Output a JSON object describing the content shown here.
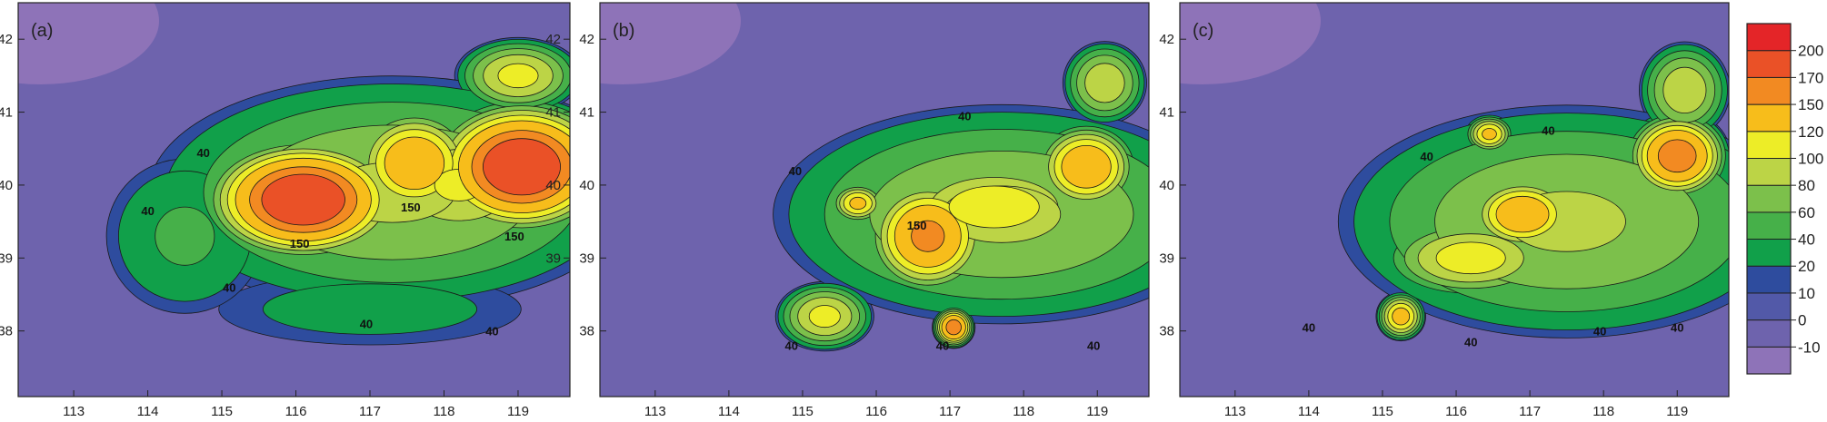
{
  "chart_data": {
    "type": "contour",
    "colorbar": {
      "levels": [
        -10,
        0,
        10,
        20,
        40,
        60,
        80,
        100,
        120,
        150,
        170,
        200
      ],
      "labels": [
        "-10",
        "0",
        "10",
        "20",
        "40",
        "60",
        "80",
        "100",
        "120",
        "150",
        "170",
        "200"
      ],
      "colors": [
        "#8e73b8",
        "#6e63ad",
        "#5259a8",
        "#2e4c9e",
        "#11a04a",
        "#46b049",
        "#7cc04b",
        "#bcd446",
        "#eded27",
        "#f7bd1b",
        "#f28a22",
        "#ea5127",
        "#e42528"
      ]
    },
    "panels": [
      {
        "label": "(a)",
        "xticks": [
          "113",
          "114",
          "115",
          "116",
          "117",
          "118",
          "119"
        ],
        "yticks": [
          "38",
          "39",
          "40",
          "41",
          "42"
        ],
        "right_yticks": [
          "39",
          "40",
          "41",
          "42"
        ],
        "xlim": [
          112.25,
          119.7
        ],
        "ylim": [
          37.1,
          42.5
        ],
        "contour_labels": [
          {
            "text": "40",
            "x": 114.0,
            "y": 39.65
          },
          {
            "text": "40",
            "x": 114.75,
            "y": 40.45
          },
          {
            "text": "40",
            "x": 115.1,
            "y": 38.6
          },
          {
            "text": "40",
            "x": 116.95,
            "y": 38.1
          },
          {
            "text": "40",
            "x": 118.65,
            "y": 38.0
          },
          {
            "text": "150",
            "x": 116.05,
            "y": 39.2
          },
          {
            "text": "150",
            "x": 117.55,
            "y": 39.7
          },
          {
            "text": "150",
            "x": 118.95,
            "y": 39.3
          }
        ],
        "centers": [
          {
            "x": 116.1,
            "y": 39.8,
            "peak": 200,
            "rx": 1.45,
            "ry": 0.9
          },
          {
            "x": 119.05,
            "y": 40.25,
            "peak": 200,
            "rx": 1.35,
            "ry": 1.0
          },
          {
            "x": 117.6,
            "y": 40.3,
            "peak": 150,
            "rx": 0.9,
            "ry": 0.8
          },
          {
            "x": 118.2,
            "y": 40.0,
            "peak": 105,
            "rx": 1.5,
            "ry": 1.0
          },
          {
            "x": 119.0,
            "y": 41.5,
            "peak": 110,
            "rx": 0.9,
            "ry": 0.55
          },
          {
            "x": 117.3,
            "y": 39.9,
            "peak": 85,
            "rx": 3.5,
            "ry": 1.7
          },
          {
            "x": 117.0,
            "y": 38.3,
            "peak": 30,
            "rx": 2.5,
            "ry": 0.6
          },
          {
            "x": 114.5,
            "y": 39.3,
            "peak": 45,
            "rx": 1.2,
            "ry": 1.2
          }
        ]
      },
      {
        "label": "(b)",
        "xticks": [
          "113",
          "114",
          "115",
          "116",
          "117",
          "118",
          "119"
        ],
        "yticks": [
          "38",
          "39",
          "40",
          "41",
          "42"
        ],
        "right_yticks": [],
        "xlim": [
          112.25,
          119.7
        ],
        "ylim": [
          37.1,
          42.5
        ],
        "contour_labels": [
          {
            "text": "40",
            "x": 114.9,
            "y": 40.2
          },
          {
            "text": "40",
            "x": 117.2,
            "y": 40.95
          },
          {
            "text": "40",
            "x": 114.85,
            "y": 37.8
          },
          {
            "text": "40",
            "x": 116.9,
            "y": 37.8
          },
          {
            "text": "40",
            "x": 118.95,
            "y": 37.8
          },
          {
            "text": "150",
            "x": 116.55,
            "y": 39.45
          }
        ],
        "centers": [
          {
            "x": 116.7,
            "y": 39.3,
            "peak": 160,
            "rx": 0.9,
            "ry": 0.85
          },
          {
            "x": 117.05,
            "y": 38.05,
            "peak": 170,
            "rx": 0.3,
            "ry": 0.3
          },
          {
            "x": 118.85,
            "y": 40.25,
            "peak": 150,
            "rx": 0.75,
            "ry": 0.65
          },
          {
            "x": 115.75,
            "y": 39.75,
            "peak": 130,
            "rx": 0.4,
            "ry": 0.3
          },
          {
            "x": 117.6,
            "y": 39.7,
            "peak": 120,
            "rx": 1.5,
            "ry": 0.7
          },
          {
            "x": 115.3,
            "y": 38.2,
            "peak": 110,
            "rx": 0.7,
            "ry": 0.5
          },
          {
            "x": 119.1,
            "y": 41.4,
            "peak": 100,
            "rx": 0.6,
            "ry": 0.6
          },
          {
            "x": 117.7,
            "y": 39.6,
            "peak": 85,
            "rx": 3.3,
            "ry": 1.6
          }
        ]
      },
      {
        "label": "(c)",
        "xticks": [
          "113",
          "114",
          "115",
          "116",
          "117",
          "118",
          "119"
        ],
        "yticks": [
          "38",
          "39",
          "40",
          "41",
          "42"
        ],
        "right_yticks": [],
        "xlim": [
          112.25,
          119.7
        ],
        "ylim": [
          37.1,
          42.5
        ],
        "contour_labels": [
          {
            "text": "40",
            "x": 114.0,
            "y": 38.05
          },
          {
            "text": "40",
            "x": 115.6,
            "y": 40.4
          },
          {
            "text": "40",
            "x": 117.25,
            "y": 40.75
          },
          {
            "text": "40",
            "x": 116.2,
            "y": 37.85
          },
          {
            "text": "40",
            "x": 117.95,
            "y": 38.0
          },
          {
            "text": "40",
            "x": 119.0,
            "y": 38.05
          }
        ],
        "centers": [
          {
            "x": 116.9,
            "y": 39.6,
            "peak": 150,
            "rx": 0.8,
            "ry": 0.55
          },
          {
            "x": 119.0,
            "y": 40.4,
            "peak": 170,
            "rx": 0.75,
            "ry": 0.65
          },
          {
            "x": 116.45,
            "y": 40.7,
            "peak": 130,
            "rx": 0.35,
            "ry": 0.28
          },
          {
            "x": 115.25,
            "y": 38.2,
            "peak": 135,
            "rx": 0.35,
            "ry": 0.35
          },
          {
            "x": 116.2,
            "y": 39.0,
            "peak": 115,
            "rx": 1.3,
            "ry": 0.6
          },
          {
            "x": 119.1,
            "y": 41.3,
            "peak": 100,
            "rx": 0.65,
            "ry": 0.7
          },
          {
            "x": 117.5,
            "y": 39.5,
            "peak": 85,
            "rx": 3.3,
            "ry": 1.7
          }
        ]
      }
    ]
  }
}
